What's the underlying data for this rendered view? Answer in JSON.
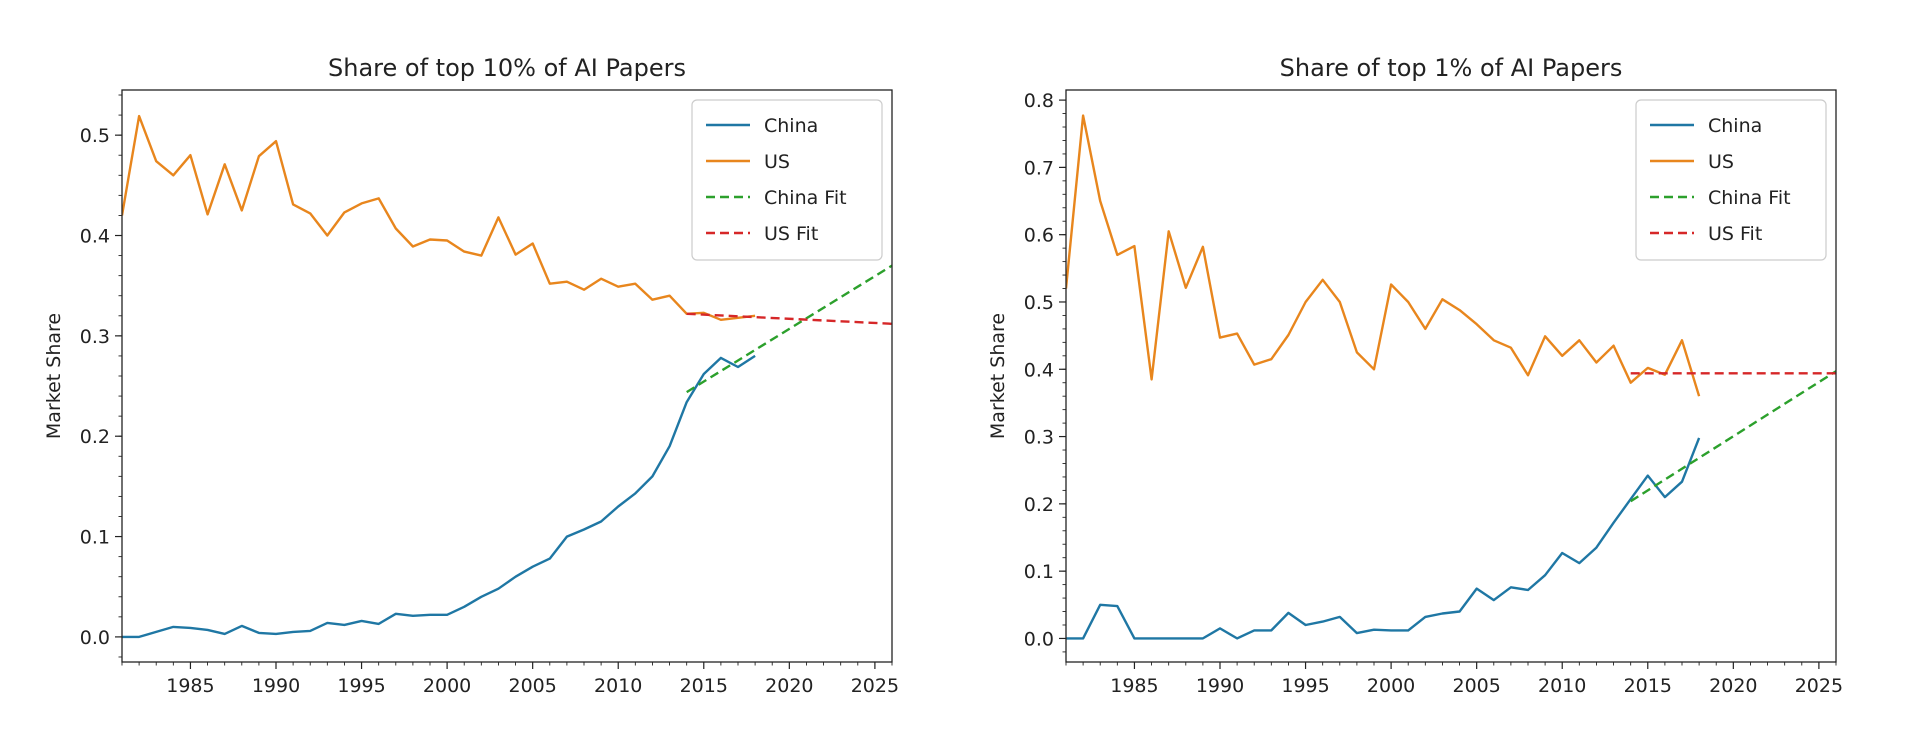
{
  "chart_data": [
    {
      "type": "line",
      "title": "Share of top 10% of AI Papers",
      "xlabel": "",
      "ylabel": "Market Share",
      "xlim": [
        1981,
        2026
      ],
      "ylim": [
        -0.025,
        0.545
      ],
      "xticks": [
        1985,
        1990,
        1995,
        2000,
        2005,
        2010,
        2015,
        2020,
        2025
      ],
      "yticks": [
        0.0,
        0.1,
        0.2,
        0.3,
        0.4,
        0.5
      ],
      "legend_position": "top-right",
      "grid": false,
      "series": [
        {
          "name": "China",
          "color": "#1f77a4",
          "style": "solid",
          "x": [
            1981,
            1982,
            1983,
            1984,
            1985,
            1986,
            1987,
            1988,
            1989,
            1990,
            1991,
            1992,
            1993,
            1994,
            1995,
            1996,
            1997,
            1998,
            1999,
            2000,
            2001,
            2002,
            2003,
            2004,
            2005,
            2006,
            2007,
            2008,
            2009,
            2010,
            2011,
            2012,
            2013,
            2014,
            2015,
            2016,
            2017,
            2018
          ],
          "values": [
            0.0,
            0.0,
            0.005,
            0.01,
            0.009,
            0.007,
            0.003,
            0.011,
            0.004,
            0.003,
            0.005,
            0.006,
            0.014,
            0.012,
            0.016,
            0.013,
            0.023,
            0.021,
            0.022,
            0.022,
            0.03,
            0.04,
            0.048,
            0.06,
            0.07,
            0.078,
            0.1,
            0.107,
            0.115,
            0.13,
            0.143,
            0.16,
            0.19,
            0.234,
            0.262,
            0.278,
            0.269,
            0.28
          ]
        },
        {
          "name": "US",
          "color": "#e8861d",
          "style": "solid",
          "x": [
            1981,
            1982,
            1983,
            1984,
            1985,
            1986,
            1987,
            1988,
            1989,
            1990,
            1991,
            1992,
            1993,
            1994,
            1995,
            1996,
            1997,
            1998,
            1999,
            2000,
            2001,
            2002,
            2003,
            2004,
            2005,
            2006,
            2007,
            2008,
            2009,
            2010,
            2011,
            2012,
            2013,
            2014,
            2015,
            2016,
            2017,
            2018
          ],
          "values": [
            0.42,
            0.519,
            0.474,
            0.46,
            0.48,
            0.421,
            0.471,
            0.425,
            0.479,
            0.494,
            0.431,
            0.422,
            0.4,
            0.423,
            0.432,
            0.437,
            0.407,
            0.389,
            0.396,
            0.395,
            0.384,
            0.38,
            0.418,
            0.381,
            0.392,
            0.352,
            0.354,
            0.346,
            0.357,
            0.349,
            0.352,
            0.336,
            0.34,
            0.322,
            0.323,
            0.316,
            0.318,
            0.32
          ]
        },
        {
          "name": "China Fit",
          "color": "#2ca02c",
          "style": "dashed",
          "x": [
            2014,
            2026
          ],
          "values": [
            0.244,
            0.37
          ]
        },
        {
          "name": "US Fit",
          "color": "#d62728",
          "style": "dashed",
          "x": [
            2014,
            2026
          ],
          "values": [
            0.322,
            0.312
          ]
        }
      ]
    },
    {
      "type": "line",
      "title": "Share of top 1% of AI Papers",
      "xlabel": "",
      "ylabel": "Market Share",
      "xlim": [
        1981,
        2026
      ],
      "ylim": [
        -0.035,
        0.815
      ],
      "xticks": [
        1985,
        1990,
        1995,
        2000,
        2005,
        2010,
        2015,
        2020,
        2025
      ],
      "yticks": [
        0.0,
        0.1,
        0.2,
        0.3,
        0.4,
        0.5,
        0.6,
        0.7,
        0.8
      ],
      "legend_position": "top-right",
      "grid": false,
      "series": [
        {
          "name": "China",
          "color": "#1f77a4",
          "style": "solid",
          "x": [
            1981,
            1982,
            1983,
            1984,
            1985,
            1986,
            1987,
            1988,
            1989,
            1990,
            1991,
            1992,
            1993,
            1994,
            1995,
            1996,
            1997,
            1998,
            1999,
            2000,
            2001,
            2002,
            2003,
            2004,
            2005,
            2006,
            2007,
            2008,
            2009,
            2010,
            2011,
            2012,
            2013,
            2014,
            2015,
            2016,
            2017,
            2018
          ],
          "values": [
            0.0,
            0.0,
            0.05,
            0.048,
            0.0,
            0.0,
            0.0,
            0.0,
            0.0,
            0.015,
            0.0,
            0.012,
            0.012,
            0.038,
            0.02,
            0.025,
            0.032,
            0.008,
            0.013,
            0.012,
            0.012,
            0.032,
            0.037,
            0.04,
            0.074,
            0.057,
            0.076,
            0.072,
            0.094,
            0.127,
            0.112,
            0.135,
            0.172,
            0.207,
            0.242,
            0.21,
            0.233,
            0.298
          ]
        },
        {
          "name": "US",
          "color": "#e8861d",
          "style": "solid",
          "x": [
            1981,
            1982,
            1983,
            1984,
            1985,
            1986,
            1987,
            1988,
            1989,
            1990,
            1991,
            1992,
            1993,
            1994,
            1995,
            1996,
            1997,
            1998,
            1999,
            2000,
            2001,
            2002,
            2003,
            2004,
            2005,
            2006,
            2007,
            2008,
            2009,
            2010,
            2011,
            2012,
            2013,
            2014,
            2015,
            2016,
            2017,
            2018
          ],
          "values": [
            0.52,
            0.777,
            0.65,
            0.57,
            0.583,
            0.385,
            0.605,
            0.521,
            0.582,
            0.447,
            0.453,
            0.407,
            0.415,
            0.451,
            0.5,
            0.533,
            0.5,
            0.425,
            0.4,
            0.526,
            0.5,
            0.46,
            0.504,
            0.488,
            0.467,
            0.443,
            0.432,
            0.391,
            0.449,
            0.42,
            0.443,
            0.41,
            0.435,
            0.38,
            0.402,
            0.392,
            0.443,
            0.36
          ]
        },
        {
          "name": "China Fit",
          "color": "#2ca02c",
          "style": "dashed",
          "x": [
            2014,
            2026
          ],
          "values": [
            0.204,
            0.397
          ]
        },
        {
          "name": "US Fit",
          "color": "#d62728",
          "style": "dashed",
          "x": [
            2014,
            2026
          ],
          "values": [
            0.394,
            0.394
          ]
        }
      ]
    }
  ]
}
